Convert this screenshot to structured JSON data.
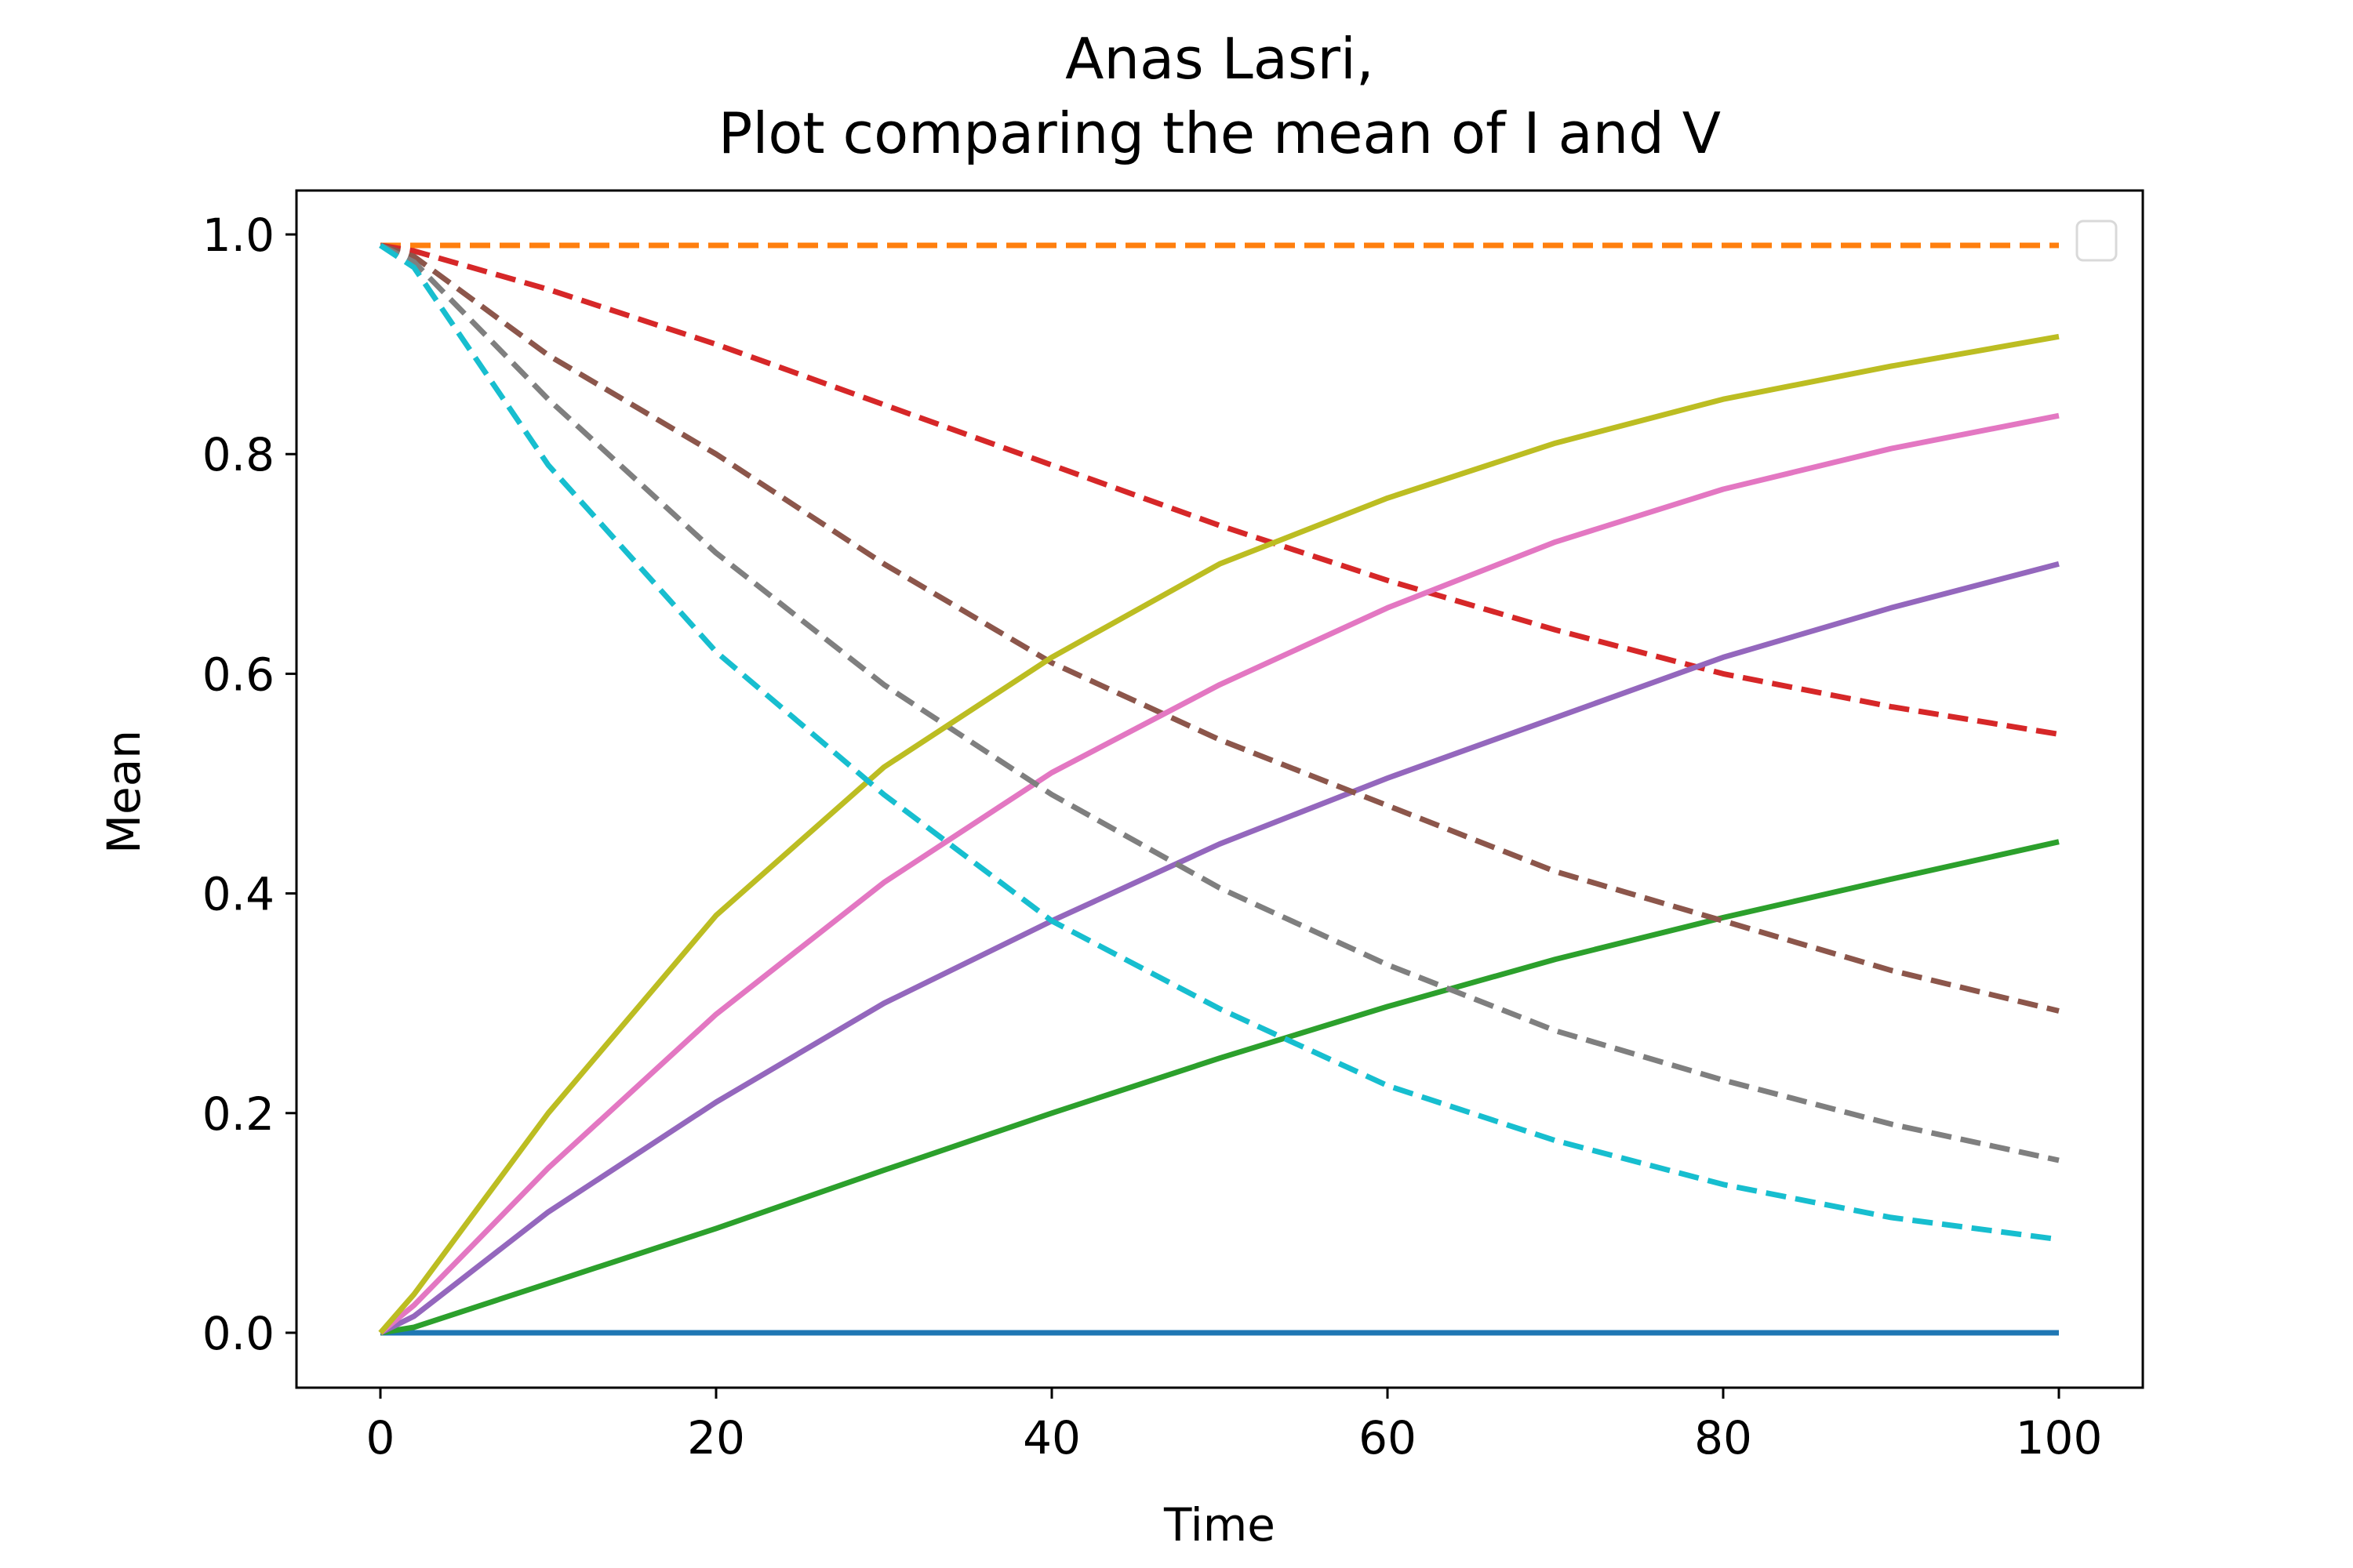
{
  "chart_data": {
    "type": "line",
    "title": "Anas Lasri,",
    "subtitle": "Plot comparing the mean of I and V",
    "xlabel": "Time",
    "ylabel": "Mean",
    "xlim": [
      -5,
      105
    ],
    "ylim": [
      -0.05,
      1.04
    ],
    "xticks": [
      "0",
      "20",
      "40",
      "60",
      "80",
      "100"
    ],
    "yticks": [
      "0.0",
      "0.2",
      "0.4",
      "0.6",
      "0.8",
      "1.0"
    ],
    "grid": false,
    "legend": {
      "placement": "upper-right",
      "entries": []
    },
    "series": [
      {
        "color": "#1f77b4",
        "style": "solid",
        "x": [
          0,
          20,
          40,
          60,
          80,
          100
        ],
        "y": [
          0,
          0,
          0,
          0,
          0,
          0
        ]
      },
      {
        "color": "#ff7f0e",
        "style": "dashed",
        "x": [
          0,
          20,
          40,
          60,
          80,
          100
        ],
        "y": [
          0.99,
          0.99,
          0.99,
          0.99,
          0.99,
          0.99
        ]
      },
      {
        "color": "#2ca02c",
        "style": "solid",
        "x": [
          0,
          2,
          10,
          20,
          30,
          40,
          50,
          60,
          70,
          80,
          90,
          100
        ],
        "y": [
          0,
          0.005,
          0.045,
          0.095,
          0.148,
          0.2,
          0.25,
          0.297,
          0.34,
          0.378,
          0.413,
          0.447
        ]
      },
      {
        "color": "#d62728",
        "style": "dashed",
        "x": [
          0,
          2,
          10,
          20,
          30,
          40,
          50,
          60,
          70,
          80,
          90,
          100
        ],
        "y": [
          0.99,
          0.985,
          0.95,
          0.9,
          0.845,
          0.79,
          0.735,
          0.685,
          0.64,
          0.6,
          0.57,
          0.545
        ]
      },
      {
        "color": "#9467bd",
        "style": "solid",
        "x": [
          0,
          2,
          10,
          20,
          30,
          40,
          50,
          60,
          70,
          80,
          90,
          100
        ],
        "y": [
          0,
          0.015,
          0.11,
          0.21,
          0.3,
          0.375,
          0.445,
          0.505,
          0.56,
          0.615,
          0.66,
          0.7
        ]
      },
      {
        "color": "#8c564b",
        "style": "dashed",
        "x": [
          0,
          2,
          10,
          20,
          30,
          40,
          50,
          60,
          70,
          80,
          90,
          100
        ],
        "y": [
          0.99,
          0.98,
          0.89,
          0.8,
          0.7,
          0.61,
          0.54,
          0.48,
          0.42,
          0.375,
          0.33,
          0.293
        ]
      },
      {
        "color": "#e377c2",
        "style": "solid",
        "x": [
          0,
          2,
          10,
          20,
          30,
          40,
          50,
          60,
          70,
          80,
          90,
          100
        ],
        "y": [
          0,
          0.025,
          0.15,
          0.29,
          0.41,
          0.51,
          0.59,
          0.66,
          0.72,
          0.768,
          0.805,
          0.835
        ]
      },
      {
        "color": "#7f7f7f",
        "style": "dashed",
        "x": [
          0,
          2,
          10,
          20,
          30,
          40,
          50,
          60,
          70,
          80,
          90,
          100
        ],
        "y": [
          0.99,
          0.975,
          0.85,
          0.71,
          0.59,
          0.49,
          0.405,
          0.335,
          0.275,
          0.23,
          0.19,
          0.157
        ]
      },
      {
        "color": "#bcbd22",
        "style": "solid",
        "x": [
          0,
          2,
          10,
          20,
          30,
          40,
          50,
          60,
          70,
          80,
          90,
          100
        ],
        "y": [
          0,
          0.035,
          0.2,
          0.38,
          0.515,
          0.615,
          0.7,
          0.76,
          0.81,
          0.85,
          0.88,
          0.907
        ]
      },
      {
        "color": "#17becf",
        "style": "dashed",
        "x": [
          0,
          2,
          10,
          20,
          30,
          40,
          50,
          60,
          70,
          80,
          90,
          100
        ],
        "y": [
          0.99,
          0.97,
          0.79,
          0.62,
          0.49,
          0.375,
          0.295,
          0.225,
          0.175,
          0.135,
          0.105,
          0.085
        ]
      }
    ]
  }
}
